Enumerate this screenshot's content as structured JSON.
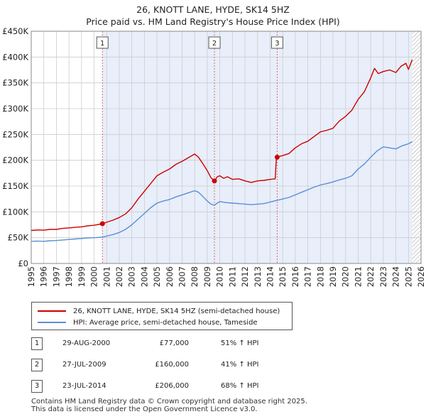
{
  "title": {
    "line1": "26, KNOTT LANE, HYDE, SK14 5HZ",
    "line2": "Price paid vs. HM Land Registry's House Price Index (HPI)"
  },
  "legend": {
    "items": [
      {
        "label": "26, KNOTT LANE, HYDE, SK14 5HZ (semi-detached house)",
        "color": "#cc0000"
      },
      {
        "label": "HPI: Average price, semi-detached house, Tameside",
        "color": "#5b8ed6"
      }
    ]
  },
  "sales": [
    {
      "num": "1",
      "date": "29-AUG-2000",
      "price": "£77,000",
      "hpi": "51% ↑ HPI"
    },
    {
      "num": "2",
      "date": "27-JUL-2009",
      "price": "£160,000",
      "hpi": "41% ↑ HPI"
    },
    {
      "num": "3",
      "date": "23-JUL-2014",
      "price": "£206,000",
      "hpi": "68% ↑ HPI"
    }
  ],
  "footer": {
    "line1": "Contains HM Land Registry data © Crown copyright and database right 2025.",
    "line2": "This data is licensed under the Open Government Licence v3.0."
  },
  "colors": {
    "price_line": "#cc0000",
    "hpi_line": "#5b8ed6",
    "shade": "#e8eefa",
    "grid": "#cccccc",
    "marker_line": "#e06666",
    "hatch": "#9a9a9a"
  },
  "chart_data": {
    "type": "line",
    "title": "26, KNOTT LANE, HYDE, SK14 5HZ — Price paid vs. HM Land Registry's House Price Index (HPI)",
    "xlabel": "",
    "ylabel": "",
    "xlim": [
      1995,
      2026
    ],
    "ylim": [
      0,
      450000
    ],
    "x_ticks": [
      "1995",
      "1996",
      "1997",
      "1998",
      "1999",
      "2000",
      "2001",
      "2002",
      "2003",
      "2004",
      "2005",
      "2006",
      "2007",
      "2008",
      "2009",
      "2010",
      "2011",
      "2012",
      "2013",
      "2014",
      "2015",
      "2016",
      "2017",
      "2018",
      "2019",
      "2020",
      "2021",
      "2022",
      "2023",
      "2024",
      "2025",
      "2026"
    ],
    "y_ticks": [
      {
        "value": 0,
        "label": "£0"
      },
      {
        "value": 50000,
        "label": "£50K"
      },
      {
        "value": 100000,
        "label": "£100K"
      },
      {
        "value": 150000,
        "label": "£150K"
      },
      {
        "value": 200000,
        "label": "£200K"
      },
      {
        "value": 250000,
        "label": "£250K"
      },
      {
        "value": 300000,
        "label": "£300K"
      },
      {
        "value": 350000,
        "label": "£350K"
      },
      {
        "value": 400000,
        "label": "£400K"
      },
      {
        "value": 450000,
        "label": "£450K"
      }
    ],
    "shaded_period": [
      2000.66,
      2025.3
    ],
    "hatched_from": 2025.3,
    "series": [
      {
        "name": "26, KNOTT LANE, HYDE, SK14 5HZ (semi-detached house)",
        "points": [
          [
            1995.0,
            64000
          ],
          [
            1995.5,
            65000
          ],
          [
            1996.0,
            64500
          ],
          [
            1996.5,
            66000
          ],
          [
            1997.0,
            66000
          ],
          [
            1997.5,
            68000
          ],
          [
            1998.0,
            69000
          ],
          [
            1998.5,
            70000
          ],
          [
            1999.0,
            71000
          ],
          [
            1999.5,
            73000
          ],
          [
            2000.0,
            74000
          ],
          [
            2000.66,
            77000
          ],
          [
            2001.0,
            80000
          ],
          [
            2001.5,
            84000
          ],
          [
            2002.0,
            89000
          ],
          [
            2002.5,
            96000
          ],
          [
            2003.0,
            108000
          ],
          [
            2003.5,
            125000
          ],
          [
            2004.0,
            140000
          ],
          [
            2004.5,
            155000
          ],
          [
            2005.0,
            170000
          ],
          [
            2005.5,
            177000
          ],
          [
            2006.0,
            183000
          ],
          [
            2006.5,
            192000
          ],
          [
            2007.0,
            198000
          ],
          [
            2007.5,
            205000
          ],
          [
            2008.0,
            212000
          ],
          [
            2008.3,
            206000
          ],
          [
            2008.6,
            195000
          ],
          [
            2009.0,
            180000
          ],
          [
            2009.3,
            166000
          ],
          [
            2009.57,
            160000
          ],
          [
            2009.8,
            168000
          ],
          [
            2010.0,
            170000
          ],
          [
            2010.3,
            165000
          ],
          [
            2010.6,
            168000
          ],
          [
            2011.0,
            163000
          ],
          [
            2011.5,
            164000
          ],
          [
            2012.0,
            160000
          ],
          [
            2012.5,
            157000
          ],
          [
            2013.0,
            160000
          ],
          [
            2013.5,
            161000
          ],
          [
            2014.0,
            163000
          ],
          [
            2014.4,
            164000
          ],
          [
            2014.5,
            206000
          ],
          [
            2015.0,
            209000
          ],
          [
            2015.5,
            213000
          ],
          [
            2016.0,
            224000
          ],
          [
            2016.5,
            232000
          ],
          [
            2017.0,
            237000
          ],
          [
            2017.5,
            246000
          ],
          [
            2018.0,
            255000
          ],
          [
            2018.5,
            258000
          ],
          [
            2019.0,
            262000
          ],
          [
            2019.5,
            276000
          ],
          [
            2020.0,
            285000
          ],
          [
            2020.5,
            297000
          ],
          [
            2021.0,
            318000
          ],
          [
            2021.5,
            333000
          ],
          [
            2022.0,
            360000
          ],
          [
            2022.3,
            378000
          ],
          [
            2022.6,
            368000
          ],
          [
            2023.0,
            372000
          ],
          [
            2023.5,
            375000
          ],
          [
            2024.0,
            370000
          ],
          [
            2024.4,
            382000
          ],
          [
            2024.8,
            388000
          ],
          [
            2025.0,
            376000
          ],
          [
            2025.3,
            395000
          ]
        ]
      },
      {
        "name": "HPI: Average price, semi-detached house, Tameside",
        "points": [
          [
            1995.0,
            43000
          ],
          [
            1995.5,
            43500
          ],
          [
            1996.0,
            43000
          ],
          [
            1996.5,
            44000
          ],
          [
            1997.0,
            44500
          ],
          [
            1997.5,
            45500
          ],
          [
            1998.0,
            46500
          ],
          [
            1998.5,
            47500
          ],
          [
            1999.0,
            48500
          ],
          [
            1999.5,
            49500
          ],
          [
            2000.0,
            50000
          ],
          [
            2000.66,
            51000
          ],
          [
            2001.0,
            53000
          ],
          [
            2001.5,
            56000
          ],
          [
            2002.0,
            60000
          ],
          [
            2002.5,
            66000
          ],
          [
            2003.0,
            75000
          ],
          [
            2003.5,
            86000
          ],
          [
            2004.0,
            97000
          ],
          [
            2004.5,
            108000
          ],
          [
            2005.0,
            117000
          ],
          [
            2005.5,
            121000
          ],
          [
            2006.0,
            124000
          ],
          [
            2006.5,
            129000
          ],
          [
            2007.0,
            133000
          ],
          [
            2007.5,
            137000
          ],
          [
            2008.0,
            141000
          ],
          [
            2008.3,
            138000
          ],
          [
            2008.6,
            131000
          ],
          [
            2009.0,
            121000
          ],
          [
            2009.3,
            115000
          ],
          [
            2009.57,
            113000
          ],
          [
            2009.8,
            117000
          ],
          [
            2010.0,
            120000
          ],
          [
            2010.5,
            118000
          ],
          [
            2011.0,
            117000
          ],
          [
            2011.5,
            116000
          ],
          [
            2012.0,
            115000
          ],
          [
            2012.5,
            114000
          ],
          [
            2013.0,
            115000
          ],
          [
            2013.5,
            116000
          ],
          [
            2014.0,
            119000
          ],
          [
            2014.5,
            122000
          ],
          [
            2015.0,
            125000
          ],
          [
            2015.5,
            128000
          ],
          [
            2016.0,
            133000
          ],
          [
            2016.5,
            138000
          ],
          [
            2017.0,
            143000
          ],
          [
            2017.5,
            148000
          ],
          [
            2018.0,
            152000
          ],
          [
            2018.5,
            155000
          ],
          [
            2019.0,
            158000
          ],
          [
            2019.5,
            162000
          ],
          [
            2020.0,
            165000
          ],
          [
            2020.5,
            170000
          ],
          [
            2021.0,
            183000
          ],
          [
            2021.5,
            193000
          ],
          [
            2022.0,
            206000
          ],
          [
            2022.5,
            218000
          ],
          [
            2023.0,
            226000
          ],
          [
            2023.5,
            224000
          ],
          [
            2024.0,
            222000
          ],
          [
            2024.5,
            228000
          ],
          [
            2025.0,
            232000
          ],
          [
            2025.3,
            236000
          ]
        ]
      }
    ],
    "sale_markers": [
      {
        "label": "1",
        "x": 2000.66,
        "value": 77000
      },
      {
        "label": "2",
        "x": 2009.57,
        "value": 160000
      },
      {
        "label": "3",
        "x": 2014.56,
        "value": 206000
      }
    ]
  }
}
